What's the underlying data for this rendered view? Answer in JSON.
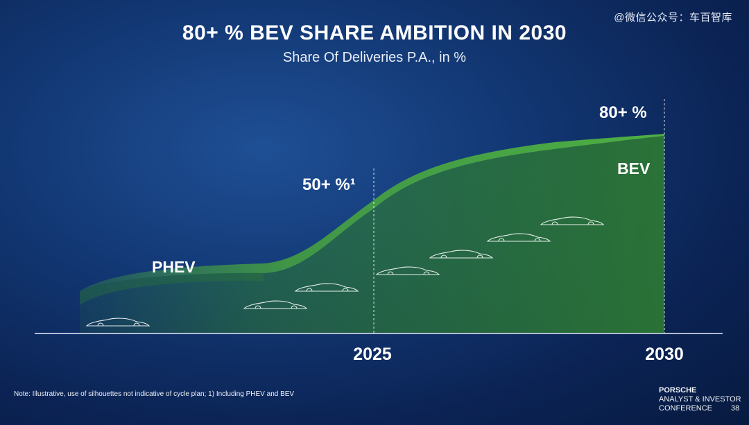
{
  "watermark": "@微信公众号：车百智库",
  "chart_data": {
    "type": "area",
    "title": "80+ % BEV SHARE AMBITION IN 2030",
    "subtitle": "Share Of Deliveries P.A., in %",
    "x_ticks": [
      "2025",
      "2030"
    ],
    "series": [
      {
        "name": "PHEV"
      },
      {
        "name": "BEV"
      }
    ],
    "annotations": [
      {
        "x": "2025",
        "label": "50+ %¹",
        "value": 50
      },
      {
        "x": "2030",
        "label": "80+ %",
        "value": 80
      }
    ],
    "colors": {
      "band": "#47a43e",
      "area": "#2d7a33",
      "axis": "#e8eef8",
      "background": "#0b2354"
    }
  },
  "footer": {
    "note": "Note: Illustrative, use of silhouettes not indicative of cycle plan; 1) Including PHEV and BEV",
    "brand_line1": "PORSCHE",
    "brand_line2": "ANALYST & INVESTOR",
    "brand_line3": "CONFERENCE",
    "page": "38"
  }
}
